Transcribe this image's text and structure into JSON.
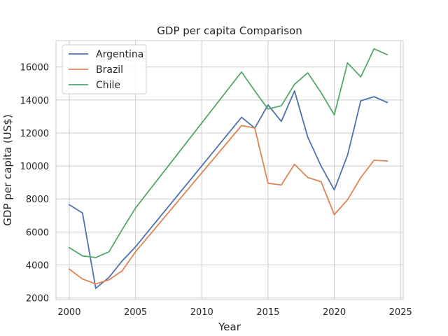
{
  "chart_data": {
    "type": "line",
    "title": "GDP per capita Comparison",
    "xlabel": "Year",
    "ylabel": "GDP per capita (US$)",
    "xlim": [
      1999.0,
      2025.2
    ],
    "ylim": [
      1900,
      17600
    ],
    "xticks": [
      2000,
      2005,
      2010,
      2015,
      2020,
      2025
    ],
    "yticks": [
      2000,
      4000,
      6000,
      8000,
      10000,
      12000,
      14000,
      16000
    ],
    "grid": true,
    "legend_position": "top-left",
    "x": [
      2000,
      2001,
      2002,
      2003,
      2004,
      2005,
      2013,
      2014,
      2015,
      2016,
      2017,
      2018,
      2019,
      2020,
      2021,
      2022,
      2023,
      2024
    ],
    "series": [
      {
        "name": "Argentina",
        "color": "#4c72b0",
        "values": [
          7650,
          7150,
          2580,
          3250,
          4250,
          5100,
          12950,
          12300,
          13700,
          12700,
          14550,
          11750,
          10000,
          8550,
          10650,
          13950,
          14200,
          13850
        ]
      },
      {
        "name": "Brazil",
        "color": "#dd8452",
        "values": [
          3750,
          3150,
          2850,
          3100,
          3650,
          4800,
          12450,
          12300,
          8950,
          8850,
          10100,
          9300,
          9050,
          7050,
          7950,
          9300,
          10350,
          10300
        ]
      },
      {
        "name": "Chile",
        "color": "#55a868",
        "values": [
          5050,
          4550,
          4450,
          4800,
          6150,
          7450,
          15700,
          14550,
          13450,
          13650,
          14950,
          15650,
          14450,
          13100,
          16250,
          15400,
          17100,
          16750
        ]
      }
    ]
  }
}
